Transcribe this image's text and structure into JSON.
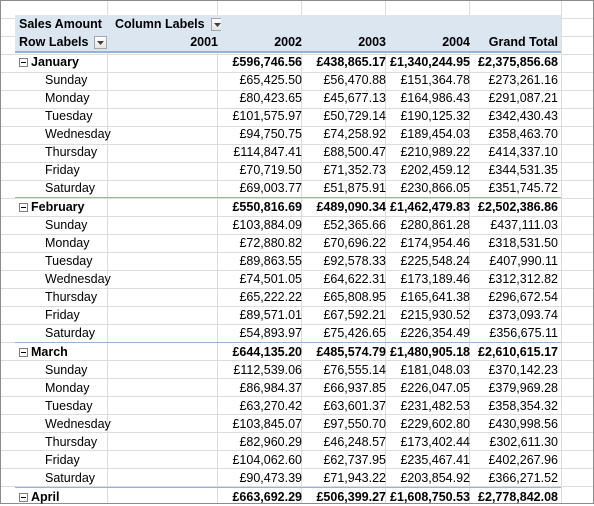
{
  "pivot": {
    "data_field": "Sales Amount",
    "column_labels": "Column Labels",
    "row_labels": "Row Labels",
    "year_headers": [
      "2001",
      "2002",
      "2003",
      "2004"
    ],
    "grand_total_header": "Grand Total",
    "months": [
      {
        "name": "January",
        "totals": [
          "",
          "£596,746.56",
          "£438,865.17",
          "£1,340,244.95",
          "£2,375,856.68"
        ],
        "days": [
          {
            "name": "Sunday",
            "values": [
              "",
              "£65,425.50",
              "£56,470.88",
              "£151,364.78",
              "£273,261.16"
            ]
          },
          {
            "name": "Monday",
            "values": [
              "",
              "£80,423.65",
              "£45,677.13",
              "£164,986.43",
              "£291,087.21"
            ]
          },
          {
            "name": "Tuesday",
            "values": [
              "",
              "£101,575.97",
              "£50,729.14",
              "£190,125.32",
              "£342,430.43"
            ]
          },
          {
            "name": "Wednesday",
            "values": [
              "",
              "£94,750.75",
              "£74,258.92",
              "£189,454.03",
              "£358,463.70"
            ]
          },
          {
            "name": "Thursday",
            "values": [
              "",
              "£114,847.41",
              "£88,500.47",
              "£210,989.22",
              "£414,337.10"
            ]
          },
          {
            "name": "Friday",
            "values": [
              "",
              "£70,719.50",
              "£71,352.73",
              "£202,459.12",
              "£344,531.35"
            ]
          },
          {
            "name": "Saturday",
            "values": [
              "",
              "£69,003.77",
              "£51,875.91",
              "£230,866.05",
              "£351,745.72"
            ]
          }
        ]
      },
      {
        "name": "February",
        "totals": [
          "",
          "£550,816.69",
          "£489,090.34",
          "£1,462,479.83",
          "£2,502,386.86"
        ],
        "days": [
          {
            "name": "Sunday",
            "values": [
              "",
              "£103,884.09",
              "£52,365.66",
              "£280,861.28",
              "£437,111.03"
            ]
          },
          {
            "name": "Monday",
            "values": [
              "",
              "£72,880.82",
              "£70,696.22",
              "£174,954.46",
              "£318,531.50"
            ]
          },
          {
            "name": "Tuesday",
            "values": [
              "",
              "£89,863.55",
              "£92,578.33",
              "£225,548.24",
              "£407,990.11"
            ]
          },
          {
            "name": "Wednesday",
            "values": [
              "",
              "£74,501.05",
              "£64,622.31",
              "£173,189.46",
              "£312,312.82"
            ]
          },
          {
            "name": "Thursday",
            "values": [
              "",
              "£65,222.22",
              "£65,808.95",
              "£165,641.38",
              "£296,672.54"
            ]
          },
          {
            "name": "Friday",
            "values": [
              "",
              "£89,571.01",
              "£67,592.21",
              "£215,930.52",
              "£373,093.74"
            ]
          },
          {
            "name": "Saturday",
            "values": [
              "",
              "£54,893.97",
              "£75,426.65",
              "£226,354.49",
              "£356,675.11"
            ]
          }
        ]
      },
      {
        "name": "March",
        "totals": [
          "",
          "£644,135.20",
          "£485,574.79",
          "£1,480,905.18",
          "£2,610,615.17"
        ],
        "days": [
          {
            "name": "Sunday",
            "values": [
              "",
              "£112,539.06",
              "£76,555.14",
              "£181,048.03",
              "£370,142.23"
            ]
          },
          {
            "name": "Monday",
            "values": [
              "",
              "£86,984.37",
              "£66,937.85",
              "£226,047.05",
              "£379,969.28"
            ]
          },
          {
            "name": "Tuesday",
            "values": [
              "",
              "£63,270.42",
              "£63,601.37",
              "£231,482.53",
              "£358,354.32"
            ]
          },
          {
            "name": "Wednesday",
            "values": [
              "",
              "£103,845.07",
              "£97,550.70",
              "£229,602.80",
              "£430,998.56"
            ]
          },
          {
            "name": "Thursday",
            "values": [
              "",
              "£82,960.29",
              "£46,248.57",
              "£173,402.44",
              "£302,611.30"
            ]
          },
          {
            "name": "Friday",
            "values": [
              "",
              "£104,062.60",
              "£62,737.95",
              "£235,467.41",
              "£402,267.96"
            ]
          },
          {
            "name": "Saturday",
            "values": [
              "",
              "£90,473.39",
              "£71,943.22",
              "£203,854.92",
              "£366,271.52"
            ]
          }
        ]
      },
      {
        "name": "April",
        "totals": [
          "",
          "£663,692.29",
          "£506,399.27",
          "£1,608,750.53",
          "£2,778,842.08"
        ],
        "days": []
      }
    ]
  },
  "colors": {
    "header_fill": "#dce6f1",
    "header_border": "#95b3d7",
    "gridline": "#dadcdd"
  }
}
